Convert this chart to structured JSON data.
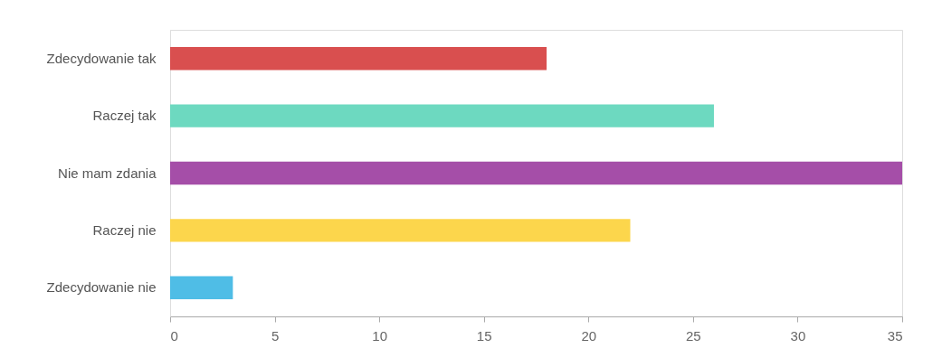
{
  "chart_data": {
    "type": "bar",
    "orientation": "horizontal",
    "categories": [
      "Zdecydowanie tak",
      "Raczej tak",
      "Nie mam zdania",
      "Raczej nie",
      "Zdecydowanie nie"
    ],
    "values": [
      18,
      26,
      35,
      22,
      3
    ],
    "colors": [
      "#d94f4f",
      "#6dd9c0",
      "#a54ea8",
      "#fcd64c",
      "#4fbde6"
    ],
    "xlim": [
      0,
      35
    ],
    "xticks": [
      0,
      5,
      10,
      15,
      20,
      25,
      30,
      35
    ],
    "grid": false,
    "legend": false
  }
}
